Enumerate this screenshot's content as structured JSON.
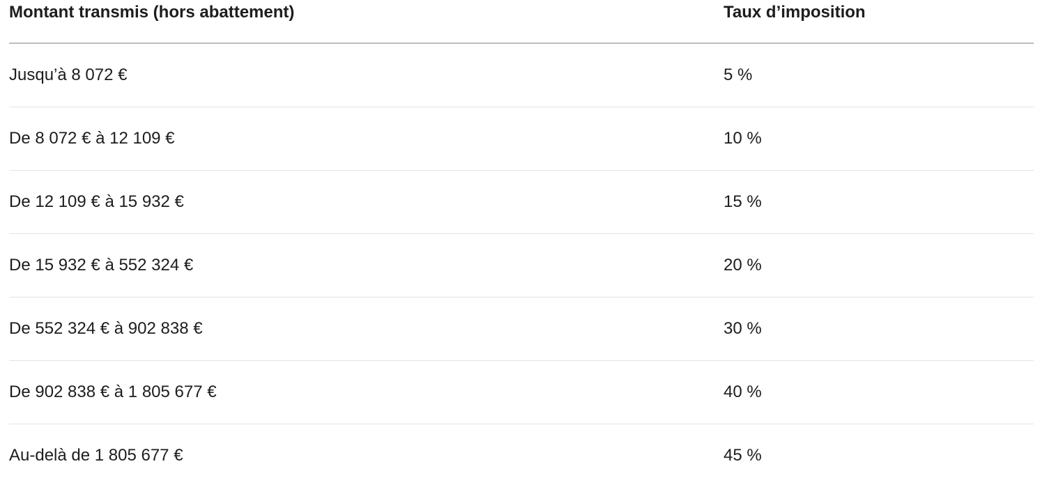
{
  "table": {
    "headers": [
      "Montant transmis (hors abattement)",
      "Taux d’imposition"
    ],
    "rows": [
      [
        "Jusqu’à 8 072 €",
        "5 %"
      ],
      [
        "De 8 072 € à 12 109 €",
        "10 %"
      ],
      [
        "De 12 109 € à 15 932 €",
        "15 %"
      ],
      [
        "De 15 932 € à 552 324 €",
        "20 %"
      ],
      [
        "De 552 324 € à 902 838 €",
        "30 %"
      ],
      [
        "De 902 838 € à 1 805 677 €",
        "40 %"
      ],
      [
        "Au-delà de 1 805 677 €",
        "45 %"
      ]
    ]
  }
}
